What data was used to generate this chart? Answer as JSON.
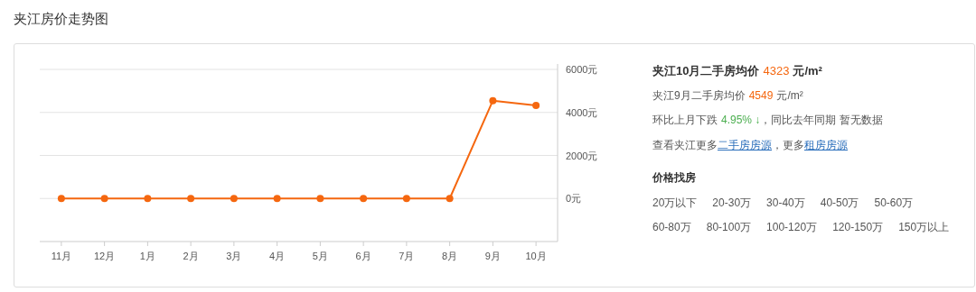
{
  "chart_data": {
    "type": "line",
    "title": "夹江房价走势图",
    "categories": [
      "11月",
      "12月",
      "1月",
      "2月",
      "3月",
      "4月",
      "5月",
      "6月",
      "7月",
      "8月",
      "9月",
      "10月"
    ],
    "values": [
      0,
      0,
      0,
      0,
      0,
      0,
      0,
      0,
      0,
      0,
      4549,
      4323
    ],
    "color": "#f5670f",
    "ylim": [
      -2000,
      6000
    ],
    "yticks": [
      {
        "value": 0,
        "label": "0元"
      },
      {
        "value": 2000,
        "label": "2000元"
      },
      {
        "value": 4000,
        "label": "4000元"
      },
      {
        "value": 6000,
        "label": "6000元"
      }
    ],
    "grid": "y",
    "marker": "circle",
    "line_style": "solid",
    "annotations": [
      "夹江10月二手房均价",
      "4323",
      "元/m²",
      "夹江9月二手房均价",
      "4549",
      "元/m²",
      "环比上月下跌",
      "4.95% ↓",
      "，同比去年同期 暂无数据",
      "查看夹江更多",
      "二手房房源",
      "，更多",
      "租房房源",
      "价格找房",
      "20万以下",
      "20-30万",
      "30-40万",
      "40-50万",
      "50-60万",
      "60-80万",
      "80-100万",
      "100-120万",
      "120-150万",
      "150万以上"
    ]
  }
}
